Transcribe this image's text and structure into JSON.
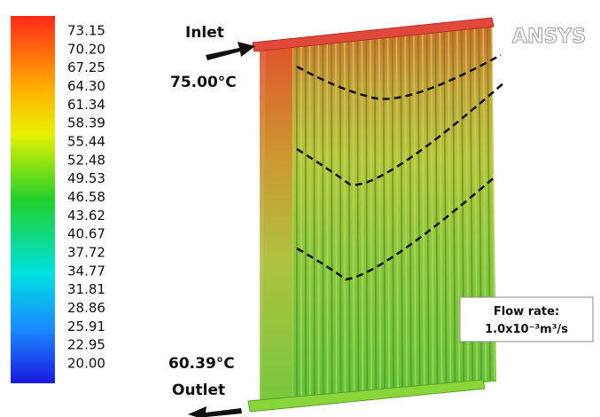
{
  "colorbar": {
    "labels": [
      "73.15",
      "70.20",
      "67.25",
      "64.30",
      "61.34",
      "58.39",
      "55.44",
      "52.48",
      "49.53",
      "46.58",
      "43.62",
      "40.67",
      "37.72",
      "34.77",
      "31.81",
      "28.86",
      "25.91",
      "22.95",
      "20.00"
    ]
  },
  "annotations": {
    "inlet": "Inlet",
    "inlet_temp": "75.00°C",
    "outlet_temp": "60.39°C",
    "outlet": "Outlet",
    "flow_label": "Flow rate:",
    "flow_value": "1.0x10⁻³m³/s"
  },
  "logo": "ANSYS"
}
